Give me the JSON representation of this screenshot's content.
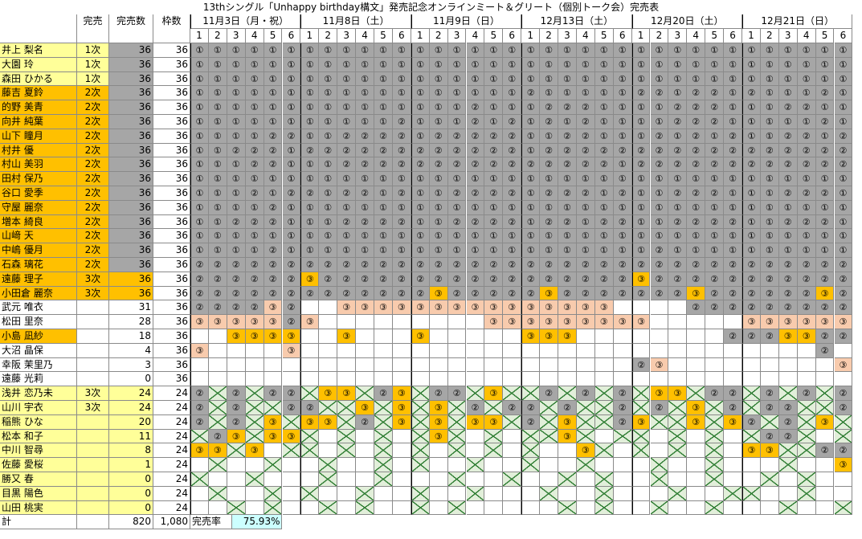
{
  "title": "13thシングル「Unhappy birthday構文」発売記念オンラインミート＆グリート（個別トーク会）完売表",
  "headers": {
    "kanbai": "完売",
    "kanbai_count": "完売数",
    "waku": "枠数"
  },
  "dates": [
    "11月3日（月・祝）",
    "11月8日（土）",
    "11月9日（日）",
    "12月13日（土）",
    "12月20日（土）",
    "12月21日（日）"
  ],
  "slots": [
    "1",
    "2",
    "3",
    "4",
    "5",
    "6"
  ],
  "members": [
    {
      "name": "井上 梨名",
      "kanbai": "1次",
      "sold": "36",
      "waku": "36",
      "style": "gray",
      "row": "111111|111111|111111|111111|111111|111111",
      "fill": "GGGGGG|GGGGGG|GGGGGG|GGGGGG|GGGGGG|GGGGGG"
    },
    {
      "name": "大園 玲",
      "kanbai": "1次",
      "sold": "36",
      "waku": "36",
      "style": "gray",
      "row": "111111|111111|111111|111111|111111|111111",
      "fill": "GGGGGG|GGGGGG|GGGGGG|GGGGGG|GGGGGG|GGGGGG"
    },
    {
      "name": "森田 ひかる",
      "kanbai": "1次",
      "sold": "36",
      "waku": "36",
      "style": "gray",
      "row": "111111|111111|111111|111111|111111|111111",
      "fill": "GGGGGG|GGGGGG|GGGGGG|GGGGGG|GGGGGG|GGGGGG"
    },
    {
      "name": "藤吉 夏鈴",
      "kanbai": "2次",
      "sold": "36",
      "waku": "36",
      "style": "orange-gray",
      "row": "111111|111111|111111|211111|221221|211121",
      "fill": "GGGGGG|GGGGGG|GGGGGG|GGGGGG|GGGGGG|GGGGGG"
    },
    {
      "name": "的野 美青",
      "kanbai": "2次",
      "sold": "36",
      "waku": "36",
      "style": "orange-gray",
      "row": "111111|111111|111211|122211|112221|112211",
      "fill": "GGGGGG|GGGGGG|GGGGGG|GGGGGG|GGGGGG|GGGGGG"
    },
    {
      "name": "向井 純葉",
      "kanbai": "2次",
      "sold": "36",
      "waku": "36",
      "style": "orange-gray",
      "row": "111111|111112|111212|121211|112221|111121",
      "fill": "GGGGGG|GGGGGG|GGGGGG|GGGGGG|GGGGGG|GGGGGG"
    },
    {
      "name": "山下 瞳月",
      "kanbai": "2次",
      "sold": "36",
      "waku": "36",
      "style": "orange-gray",
      "row": "111122|112222|122222|112211|121212|112212",
      "fill": "GGGGGG|GGGGGG|GGGGGG|GGGGGG|GGGGGG|GGGGGG"
    },
    {
      "name": "村井 優",
      "kanbai": "2次",
      "sold": "36",
      "waku": "36",
      "style": "orange-gray",
      "row": "112221|222222|222222|122222|222222|222222",
      "fill": "GGGGGG|GGGGGG|GGGGGG|GGGGGG|GGGGGG|GGGGGG"
    },
    {
      "name": "村山 美羽",
      "kanbai": "2次",
      "sold": "36",
      "waku": "36",
      "style": "orange-gray",
      "row": "111221|112222|222222|222221|222222|222222",
      "fill": "GGGGGG|GGGGGG|GGGGGG|GGGGGG|GGGGGG|GGGGGG"
    },
    {
      "name": "田村 保乃",
      "kanbai": "2次",
      "sold": "36",
      "waku": "36",
      "style": "orange-gray",
      "row": "111111|111111|111111|111111|111111|111111",
      "fill": "GGGGGG|GGGGGG|GGGGGG|GGGGGG|GGGGGG|GGGGGG"
    },
    {
      "name": "谷口 愛季",
      "kanbai": "2次",
      "sold": "36",
      "waku": "36",
      "style": "orange-gray",
      "row": "111212|212212|112222|122212|112221|112221",
      "fill": "GGGGGG|GGGGGG|GGGGGG|GGGGGG|GGGGGG|GGGGGG"
    },
    {
      "name": "守屋 麗奈",
      "kanbai": "2次",
      "sold": "36",
      "waku": "36",
      "style": "orange-gray",
      "row": "111121|111111|111111|111111|111111|111111",
      "fill": "GGGGGG|GGGGGG|GGGGGG|GGGGGG|GGGGGG|GGGGGG"
    },
    {
      "name": "増本 綺良",
      "kanbai": "2次",
      "sold": "36",
      "waku": "36",
      "style": "orange-gray",
      "row": "112221|112222|112222|122122|112222|112221",
      "fill": "GGGGGG|GGGGGG|GGGGGG|GGGGGG|GGGGGG|GGGGGG"
    },
    {
      "name": "山﨑 天",
      "kanbai": "2次",
      "sold": "36",
      "waku": "36",
      "style": "orange-gray",
      "row": "111111|111111|111111|111111|111111|111111",
      "fill": "GGGGGG|GGGGGG|GGGGGG|GGGGGG|GGGGGG|GGGGGG"
    },
    {
      "name": "中嶋 優月",
      "kanbai": "2次",
      "sold": "36",
      "waku": "36",
      "style": "orange-gray",
      "row": "111121|111111|111111|111111|121111|111111",
      "fill": "GGGGGG|GGGGGG|GGGGGG|GGGGGG|GGGGGG|GGGGGG"
    },
    {
      "name": "石森 璃花",
      "kanbai": "2次",
      "sold": "36",
      "waku": "36",
      "style": "orange-gray",
      "row": "222222|222222|222222|222222|222222|222222",
      "fill": "GGGGGG|GGGGGG|GGGGGG|GGGGGG|GGGGGG|GGGGGG"
    },
    {
      "name": "遠藤 理子",
      "kanbai": "3次",
      "sold": "36",
      "waku": "36",
      "style": "orange-orange",
      "row": "222222|322222|222222|222222|322222|222222",
      "fill": "GGGGGG|OGGGGG|GGGGGG|GGGGGG|OGGGGG|GGGGGG"
    },
    {
      "name": "小田倉 麗奈",
      "kanbai": "3次",
      "sold": "36",
      "waku": "36",
      "style": "orange-orange",
      "row": "222222|222222|232222|232222|222322|222232",
      "fill": "GGGGGG|GGGGGG|GOGGGG|GOGGGG|GGGOGG|GGGGOG"
    },
    {
      "name": "武元 唯衣",
      "kanbai": "",
      "sold": "31",
      "waku": "36",
      "style": "plain",
      "row": "222232|  3333|333333|33333 |   222|222222",
      "fill": "GGGGPG|WWPPPP|PPPPPP|PPPPPW|WWWGGG|GGGGGG"
    },
    {
      "name": "松田 里奈",
      "kanbai": "",
      "sold": "28",
      "waku": "36",
      "style": "plain",
      "row": "333332|3     |    33|333333|3     |333333",
      "fill": "PPPPPG|PWWWWW|WWWWPP|PPPPPP|PWWWWW|PPPPPP"
    },
    {
      "name": "小島 凪紗",
      "kanbai": "",
      "sold": "18",
      "waku": "36",
      "style": "orange-plain",
      "row": "  3333|  3   |3     |333   |     2|223322",
      "fill": "WWOOOO|WWOWWW|OWWWWW|OOOWWW|WWWWWG|GGOOGG"
    },
    {
      "name": "大沼 晶保",
      "kanbai": "",
      "sold": "4",
      "waku": "36",
      "style": "plain",
      "row": "3    3|      |      |      |      |    2 ",
      "fill": "PWWWWP|WWWWWW|WWWWWW|WWWWWW|WWWWWW|WWWWGW"
    },
    {
      "name": "幸阪 茉里乃",
      "kanbai": "",
      "sold": "3",
      "waku": "36",
      "style": "plain",
      "row": "      |      |      |      |23    |     3",
      "fill": "WWWWWW|WWWWWW|WWWWWW|WWWWWW|GPWWWW|WWWWWP"
    },
    {
      "name": "遠藤 光莉",
      "kanbai": "",
      "sold": "0",
      "waku": "36",
      "style": "plain",
      "row": "      |      |      |      |      |      ",
      "fill": "WWWWWW|WWWWWW|WWWWWW|WWWWWW|WWWWWW|WWWWWW"
    },
    {
      "name": "浅井 恋乃未",
      "kanbai": "3次",
      "sold": "24",
      "waku": "24",
      "style": "yellow",
      "row": "2X2X22|X33X23|X22X3X|X2X2X2|X33X22|X2X2X2",
      "fill": "GXGXGG|XOOXGO|XGGXOX|XGXGXG|XOOXGG|XGXGXG"
    },
    {
      "name": "山川 宇衣",
      "kanbai": "3次",
      "sold": "24",
      "waku": "24",
      "style": "yellow",
      "row": "2X2XX2|2XX3X3|X3X2X2|2X2XX2|X2X3X2|X22XX2",
      "fill": "GXGXXG|GXXOXO|XOXGXG|GXGXXG|XGXOXG|XGGXXG"
    },
    {
      "name": "稲熊 ひな",
      "kanbai": "",
      "sold": "20",
      "waku": "24",
      "style": "yellow",
      "row": "2X2X3X|33X2X3|X3X33X|2X3XX2|3XX3X3|2X2X3X",
      "fill": "GXGXOX|OOXGXO|XOXOOX|GXOXXG|OXXOXO|GXGXOX"
    },
    {
      "name": "松本 和子",
      "kanbai": "",
      "sold": "11",
      "waku": "24",
      "style": "yellow",
      "row": "X23X33|X X X |X3X X |XX3X X|X X X |X22X X",
      "fill": "XGOXOO|XWXWXW|XOXWXW|XXOXWX|XWXWXW|XGGXWX"
    },
    {
      "name": "中川 智尋",
      "kanbai": "",
      "sold": "8",
      "waku": "24",
      "style": "yellow",
      "row": "33X3 X|X X X |X X X |X  3X |X X X |33XX22",
      "fill": "OOXOWX|XWXWXW|XWXWXW|XWWOXW|XWXWXW|OOXXGG"
    },
    {
      "name": "佐藤 愛桜",
      "kanbai": "",
      "sold": "1",
      "waku": "24",
      "style": "yellow",
      "row": " X  X | X  X |X  X  |X  X  | X  X |  X  3",
      "fill": "WXWWXW|WXWWXW|XWWXWW|XWWXWW|WXWWXW|WWXWWO"
    },
    {
      "name": "勝又 春",
      "kanbai": "",
      "sold": "0",
      "waku": "24",
      "style": "yellow",
      "row": "X  X  | X  X |  X  X|  X X | X  X | X X  ",
      "fill": "XWWXWW|WXWWXW|WWXWWX|WWXWXW|WXWWXW|WXWXWW"
    },
    {
      "name": "目黒 陽色",
      "kanbai": "",
      "sold": "0",
      "waku": "24",
      "style": "yellow",
      "row": " X  X |X  X  |X  X  | X  X |  X  X|X  X  ",
      "fill": "WXWWXW|XWWXWW|XWWXWW|WXWWXW|WWXWWX|XWWXWW"
    },
    {
      "name": "山田 桃実",
      "kanbai": "",
      "sold": "0",
      "waku": "24",
      "style": "yellow",
      "row": "  X X | X X  |X X   |  X X | X  X |  X  X",
      "fill": "WWXWXW|WXWXWW|XWXWWW|WWXWXW|WXWWXW|WWXWWX"
    }
  ],
  "symbols": {
    "1": "①",
    "2": "②",
    "3": "③"
  },
  "footer": {
    "label": "計",
    "sold_total": "820",
    "waku_total": "1,080",
    "rate_label": "完売率",
    "rate": "75.93%"
  },
  "colors": {
    "orange": "#ffc000",
    "yellow": "#ffff99",
    "gray": "#a6a6a6",
    "peach": "#f8cbad",
    "teal": "#ccffff",
    "green": "#e2efda",
    "cross": "#2e7d32"
  }
}
